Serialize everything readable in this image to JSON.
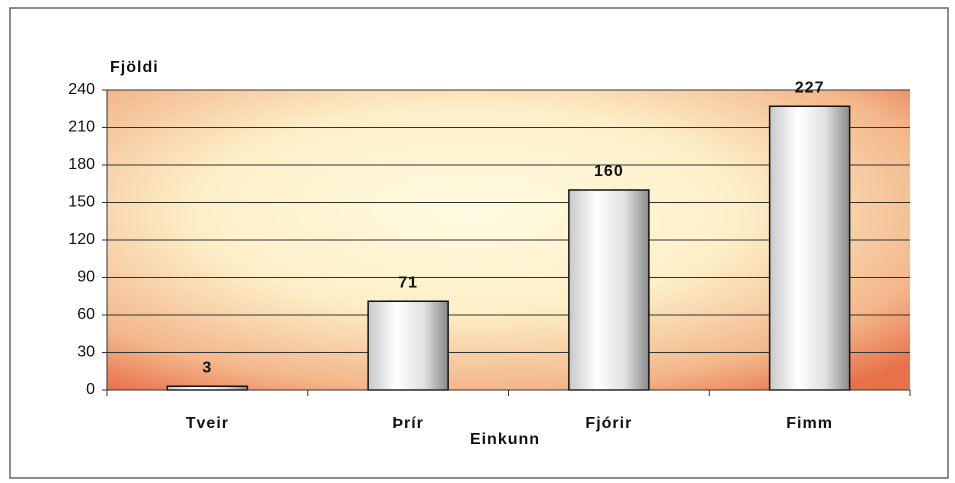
{
  "chart_data": {
    "type": "bar",
    "y_axis_label": "Fjöldi",
    "x_axis_label": "Einkunn",
    "categories": [
      "Tveir",
      "Þrír",
      "Fjórir",
      "Fimm"
    ],
    "values": [
      3,
      71,
      160,
      227
    ],
    "ylim": [
      0,
      240
    ],
    "yticks": [
      0,
      30,
      60,
      90,
      120,
      150,
      180,
      210,
      240
    ],
    "grid": true,
    "data_labels": true
  }
}
